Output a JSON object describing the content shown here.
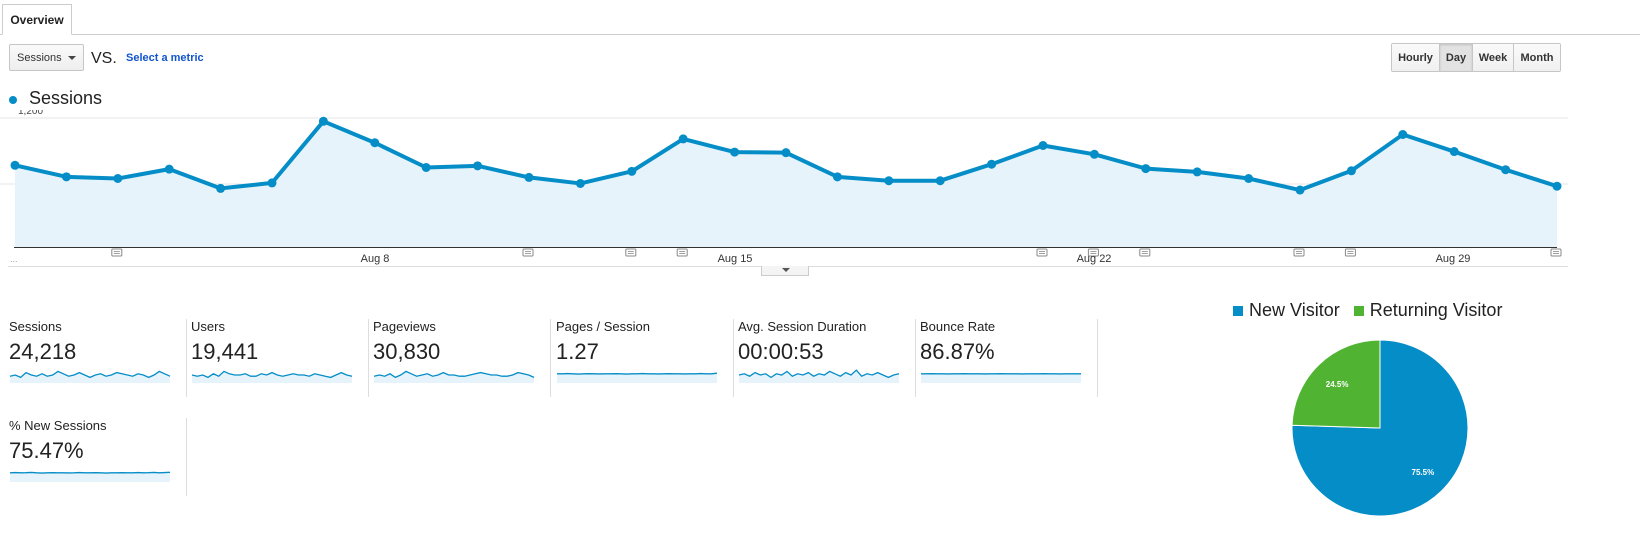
{
  "tabs": {
    "overview": "Overview"
  },
  "controls": {
    "metric_select": "Sessions",
    "vs": "VS.",
    "select_metric": "Select a metric",
    "granularity": [
      "Hourly",
      "Day",
      "Week",
      "Month"
    ],
    "active_granularity": "Day"
  },
  "chart_legend": {
    "label": "Sessions",
    "color": "#058dc7"
  },
  "chart_data": {
    "type": "area",
    "y_ticks": [
      "1,200",
      "600"
    ],
    "ylim": [
      0,
      1300
    ],
    "x_tick_labels": [
      "Aug 8",
      "Aug 15",
      "Aug 22",
      "Aug 29"
    ],
    "series": [
      {
        "name": "Sessions",
        "values": [
          770,
          665,
          650,
          735,
          560,
          610,
          1170,
          975,
          750,
          765,
          660,
          605,
          715,
          1010,
          890,
          885,
          665,
          630,
          630,
          780,
          950,
          870,
          740,
          710,
          650,
          545,
          720,
          1050,
          895,
          730,
          580
        ]
      }
    ],
    "annotation_days": [
      2,
      10,
      12,
      13,
      20,
      21,
      22,
      25,
      26,
      30
    ]
  },
  "metrics": [
    {
      "label": "Sessions",
      "value": "24,218",
      "spark": [
        0.4,
        0.5,
        0.3,
        0.7,
        0.5,
        0.4,
        0.6,
        0.4,
        0.5,
        0.8,
        0.6,
        0.4,
        0.5,
        0.7,
        0.5,
        0.3,
        0.5,
        0.6,
        0.4,
        0.5,
        0.7,
        0.6,
        0.5,
        0.4,
        0.6,
        0.5,
        0.3,
        0.5,
        0.8,
        0.6,
        0.4
      ]
    },
    {
      "label": "Users",
      "value": "19,441",
      "spark": [
        0.5,
        0.4,
        0.5,
        0.3,
        0.6,
        0.4,
        0.8,
        0.6,
        0.5,
        0.5,
        0.6,
        0.4,
        0.4,
        0.6,
        0.5,
        0.7,
        0.5,
        0.4,
        0.5,
        0.6,
        0.5,
        0.5,
        0.4,
        0.6,
        0.5,
        0.4,
        0.3,
        0.5,
        0.7,
        0.5,
        0.4
      ]
    },
    {
      "label": "Pageviews",
      "value": "30,830",
      "spark": [
        0.4,
        0.5,
        0.4,
        0.6,
        0.3,
        0.5,
        0.8,
        0.6,
        0.4,
        0.5,
        0.6,
        0.4,
        0.5,
        0.7,
        0.5,
        0.5,
        0.4,
        0.4,
        0.5,
        0.6,
        0.7,
        0.6,
        0.5,
        0.5,
        0.4,
        0.4,
        0.5,
        0.7,
        0.6,
        0.5,
        0.3
      ]
    },
    {
      "label": "Pages / Session",
      "value": "1.27",
      "spark": [
        0.6,
        0.6,
        0.62,
        0.6,
        0.58,
        0.6,
        0.61,
        0.6,
        0.59,
        0.6,
        0.6,
        0.61,
        0.6,
        0.58,
        0.6,
        0.6,
        0.62,
        0.6,
        0.6,
        0.59,
        0.6,
        0.61,
        0.6,
        0.6,
        0.59,
        0.6,
        0.6,
        0.62,
        0.6,
        0.6,
        0.65
      ]
    },
    {
      "label": "Avg. Session Duration",
      "value": "00:00:53",
      "spark": [
        0.5,
        0.6,
        0.4,
        0.7,
        0.5,
        0.6,
        0.3,
        0.6,
        0.5,
        0.8,
        0.4,
        0.6,
        0.5,
        0.7,
        0.4,
        0.6,
        0.5,
        0.8,
        0.6,
        0.4,
        0.7,
        0.5,
        0.9,
        0.4,
        0.6,
        0.5,
        0.7,
        0.5,
        0.3,
        0.5,
        0.6
      ]
    },
    {
      "label": "Bounce Rate",
      "value": "86.87%",
      "spark": [
        0.6,
        0.6,
        0.61,
        0.6,
        0.6,
        0.59,
        0.6,
        0.6,
        0.61,
        0.6,
        0.6,
        0.6,
        0.59,
        0.6,
        0.6,
        0.61,
        0.6,
        0.6,
        0.6,
        0.59,
        0.6,
        0.6,
        0.6,
        0.61,
        0.6,
        0.6,
        0.59,
        0.6,
        0.6,
        0.6,
        0.6
      ]
    },
    {
      "label": "% New Sessions",
      "value": "75.47%",
      "spark": [
        0.6,
        0.62,
        0.6,
        0.61,
        0.63,
        0.6,
        0.58,
        0.6,
        0.61,
        0.6,
        0.6,
        0.59,
        0.6,
        0.62,
        0.6,
        0.6,
        0.61,
        0.6,
        0.58,
        0.6,
        0.6,
        0.61,
        0.6,
        0.6,
        0.62,
        0.6,
        0.61,
        0.63,
        0.6,
        0.62,
        0.64
      ]
    }
  ],
  "pie": {
    "legend": [
      {
        "label": "New Visitor",
        "color": "#058dc7"
      },
      {
        "label": "Returning Visitor",
        "color": "#50b432"
      }
    ],
    "slices": [
      {
        "name": "New Visitor",
        "value": 75.5,
        "label": "75.5%",
        "color": "#058dc7"
      },
      {
        "name": "Returning Visitor",
        "value": 24.5,
        "label": "24.5%",
        "color": "#50b432"
      }
    ]
  }
}
